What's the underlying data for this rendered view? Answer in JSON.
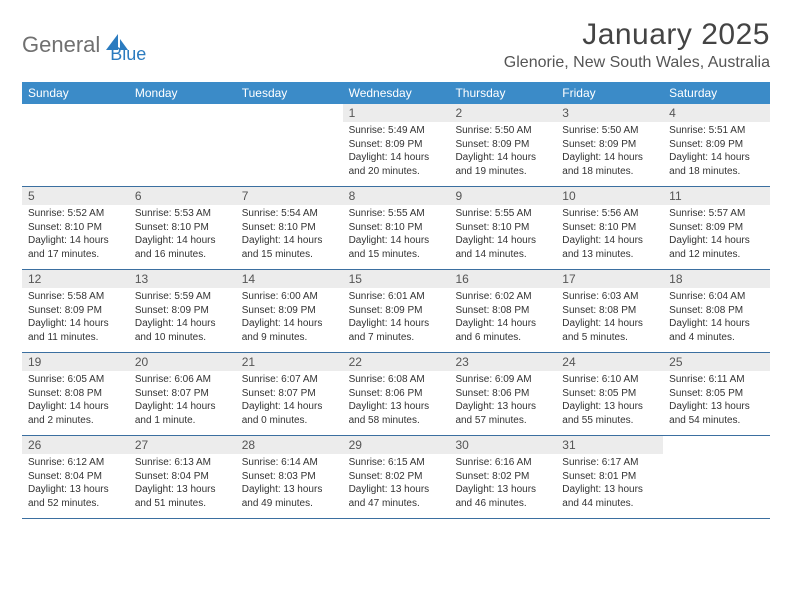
{
  "logo": {
    "part1": "General",
    "part2": "Blue"
  },
  "title": "January 2025",
  "location": "Glenorie, New South Wales, Australia",
  "colors": {
    "header_bg": "#3b8bc8",
    "header_text": "#ffffff",
    "date_bg": "#ececec",
    "week_border": "#3b6fa0",
    "body_text": "#333333",
    "logo_gray": "#707070",
    "logo_blue": "#2b7bbf"
  },
  "days_of_week": [
    "Sunday",
    "Monday",
    "Tuesday",
    "Wednesday",
    "Thursday",
    "Friday",
    "Saturday"
  ],
  "weeks": [
    [
      {
        "date": "",
        "lines": []
      },
      {
        "date": "",
        "lines": []
      },
      {
        "date": "",
        "lines": []
      },
      {
        "date": "1",
        "lines": [
          "Sunrise: 5:49 AM",
          "Sunset: 8:09 PM",
          "Daylight: 14 hours",
          "and 20 minutes."
        ]
      },
      {
        "date": "2",
        "lines": [
          "Sunrise: 5:50 AM",
          "Sunset: 8:09 PM",
          "Daylight: 14 hours",
          "and 19 minutes."
        ]
      },
      {
        "date": "3",
        "lines": [
          "Sunrise: 5:50 AM",
          "Sunset: 8:09 PM",
          "Daylight: 14 hours",
          "and 18 minutes."
        ]
      },
      {
        "date": "4",
        "lines": [
          "Sunrise: 5:51 AM",
          "Sunset: 8:09 PM",
          "Daylight: 14 hours",
          "and 18 minutes."
        ]
      }
    ],
    [
      {
        "date": "5",
        "lines": [
          "Sunrise: 5:52 AM",
          "Sunset: 8:10 PM",
          "Daylight: 14 hours",
          "and 17 minutes."
        ]
      },
      {
        "date": "6",
        "lines": [
          "Sunrise: 5:53 AM",
          "Sunset: 8:10 PM",
          "Daylight: 14 hours",
          "and 16 minutes."
        ]
      },
      {
        "date": "7",
        "lines": [
          "Sunrise: 5:54 AM",
          "Sunset: 8:10 PM",
          "Daylight: 14 hours",
          "and 15 minutes."
        ]
      },
      {
        "date": "8",
        "lines": [
          "Sunrise: 5:55 AM",
          "Sunset: 8:10 PM",
          "Daylight: 14 hours",
          "and 15 minutes."
        ]
      },
      {
        "date": "9",
        "lines": [
          "Sunrise: 5:55 AM",
          "Sunset: 8:10 PM",
          "Daylight: 14 hours",
          "and 14 minutes."
        ]
      },
      {
        "date": "10",
        "lines": [
          "Sunrise: 5:56 AM",
          "Sunset: 8:10 PM",
          "Daylight: 14 hours",
          "and 13 minutes."
        ]
      },
      {
        "date": "11",
        "lines": [
          "Sunrise: 5:57 AM",
          "Sunset: 8:09 PM",
          "Daylight: 14 hours",
          "and 12 minutes."
        ]
      }
    ],
    [
      {
        "date": "12",
        "lines": [
          "Sunrise: 5:58 AM",
          "Sunset: 8:09 PM",
          "Daylight: 14 hours",
          "and 11 minutes."
        ]
      },
      {
        "date": "13",
        "lines": [
          "Sunrise: 5:59 AM",
          "Sunset: 8:09 PM",
          "Daylight: 14 hours",
          "and 10 minutes."
        ]
      },
      {
        "date": "14",
        "lines": [
          "Sunrise: 6:00 AM",
          "Sunset: 8:09 PM",
          "Daylight: 14 hours",
          "and 9 minutes."
        ]
      },
      {
        "date": "15",
        "lines": [
          "Sunrise: 6:01 AM",
          "Sunset: 8:09 PM",
          "Daylight: 14 hours",
          "and 7 minutes."
        ]
      },
      {
        "date": "16",
        "lines": [
          "Sunrise: 6:02 AM",
          "Sunset: 8:08 PM",
          "Daylight: 14 hours",
          "and 6 minutes."
        ]
      },
      {
        "date": "17",
        "lines": [
          "Sunrise: 6:03 AM",
          "Sunset: 8:08 PM",
          "Daylight: 14 hours",
          "and 5 minutes."
        ]
      },
      {
        "date": "18",
        "lines": [
          "Sunrise: 6:04 AM",
          "Sunset: 8:08 PM",
          "Daylight: 14 hours",
          "and 4 minutes."
        ]
      }
    ],
    [
      {
        "date": "19",
        "lines": [
          "Sunrise: 6:05 AM",
          "Sunset: 8:08 PM",
          "Daylight: 14 hours",
          "and 2 minutes."
        ]
      },
      {
        "date": "20",
        "lines": [
          "Sunrise: 6:06 AM",
          "Sunset: 8:07 PM",
          "Daylight: 14 hours",
          "and 1 minute."
        ]
      },
      {
        "date": "21",
        "lines": [
          "Sunrise: 6:07 AM",
          "Sunset: 8:07 PM",
          "Daylight: 14 hours",
          "and 0 minutes."
        ]
      },
      {
        "date": "22",
        "lines": [
          "Sunrise: 6:08 AM",
          "Sunset: 8:06 PM",
          "Daylight: 13 hours",
          "and 58 minutes."
        ]
      },
      {
        "date": "23",
        "lines": [
          "Sunrise: 6:09 AM",
          "Sunset: 8:06 PM",
          "Daylight: 13 hours",
          "and 57 minutes."
        ]
      },
      {
        "date": "24",
        "lines": [
          "Sunrise: 6:10 AM",
          "Sunset: 8:05 PM",
          "Daylight: 13 hours",
          "and 55 minutes."
        ]
      },
      {
        "date": "25",
        "lines": [
          "Sunrise: 6:11 AM",
          "Sunset: 8:05 PM",
          "Daylight: 13 hours",
          "and 54 minutes."
        ]
      }
    ],
    [
      {
        "date": "26",
        "lines": [
          "Sunrise: 6:12 AM",
          "Sunset: 8:04 PM",
          "Daylight: 13 hours",
          "and 52 minutes."
        ]
      },
      {
        "date": "27",
        "lines": [
          "Sunrise: 6:13 AM",
          "Sunset: 8:04 PM",
          "Daylight: 13 hours",
          "and 51 minutes."
        ]
      },
      {
        "date": "28",
        "lines": [
          "Sunrise: 6:14 AM",
          "Sunset: 8:03 PM",
          "Daylight: 13 hours",
          "and 49 minutes."
        ]
      },
      {
        "date": "29",
        "lines": [
          "Sunrise: 6:15 AM",
          "Sunset: 8:02 PM",
          "Daylight: 13 hours",
          "and 47 minutes."
        ]
      },
      {
        "date": "30",
        "lines": [
          "Sunrise: 6:16 AM",
          "Sunset: 8:02 PM",
          "Daylight: 13 hours",
          "and 46 minutes."
        ]
      },
      {
        "date": "31",
        "lines": [
          "Sunrise: 6:17 AM",
          "Sunset: 8:01 PM",
          "Daylight: 13 hours",
          "and 44 minutes."
        ]
      },
      {
        "date": "",
        "lines": []
      }
    ]
  ]
}
